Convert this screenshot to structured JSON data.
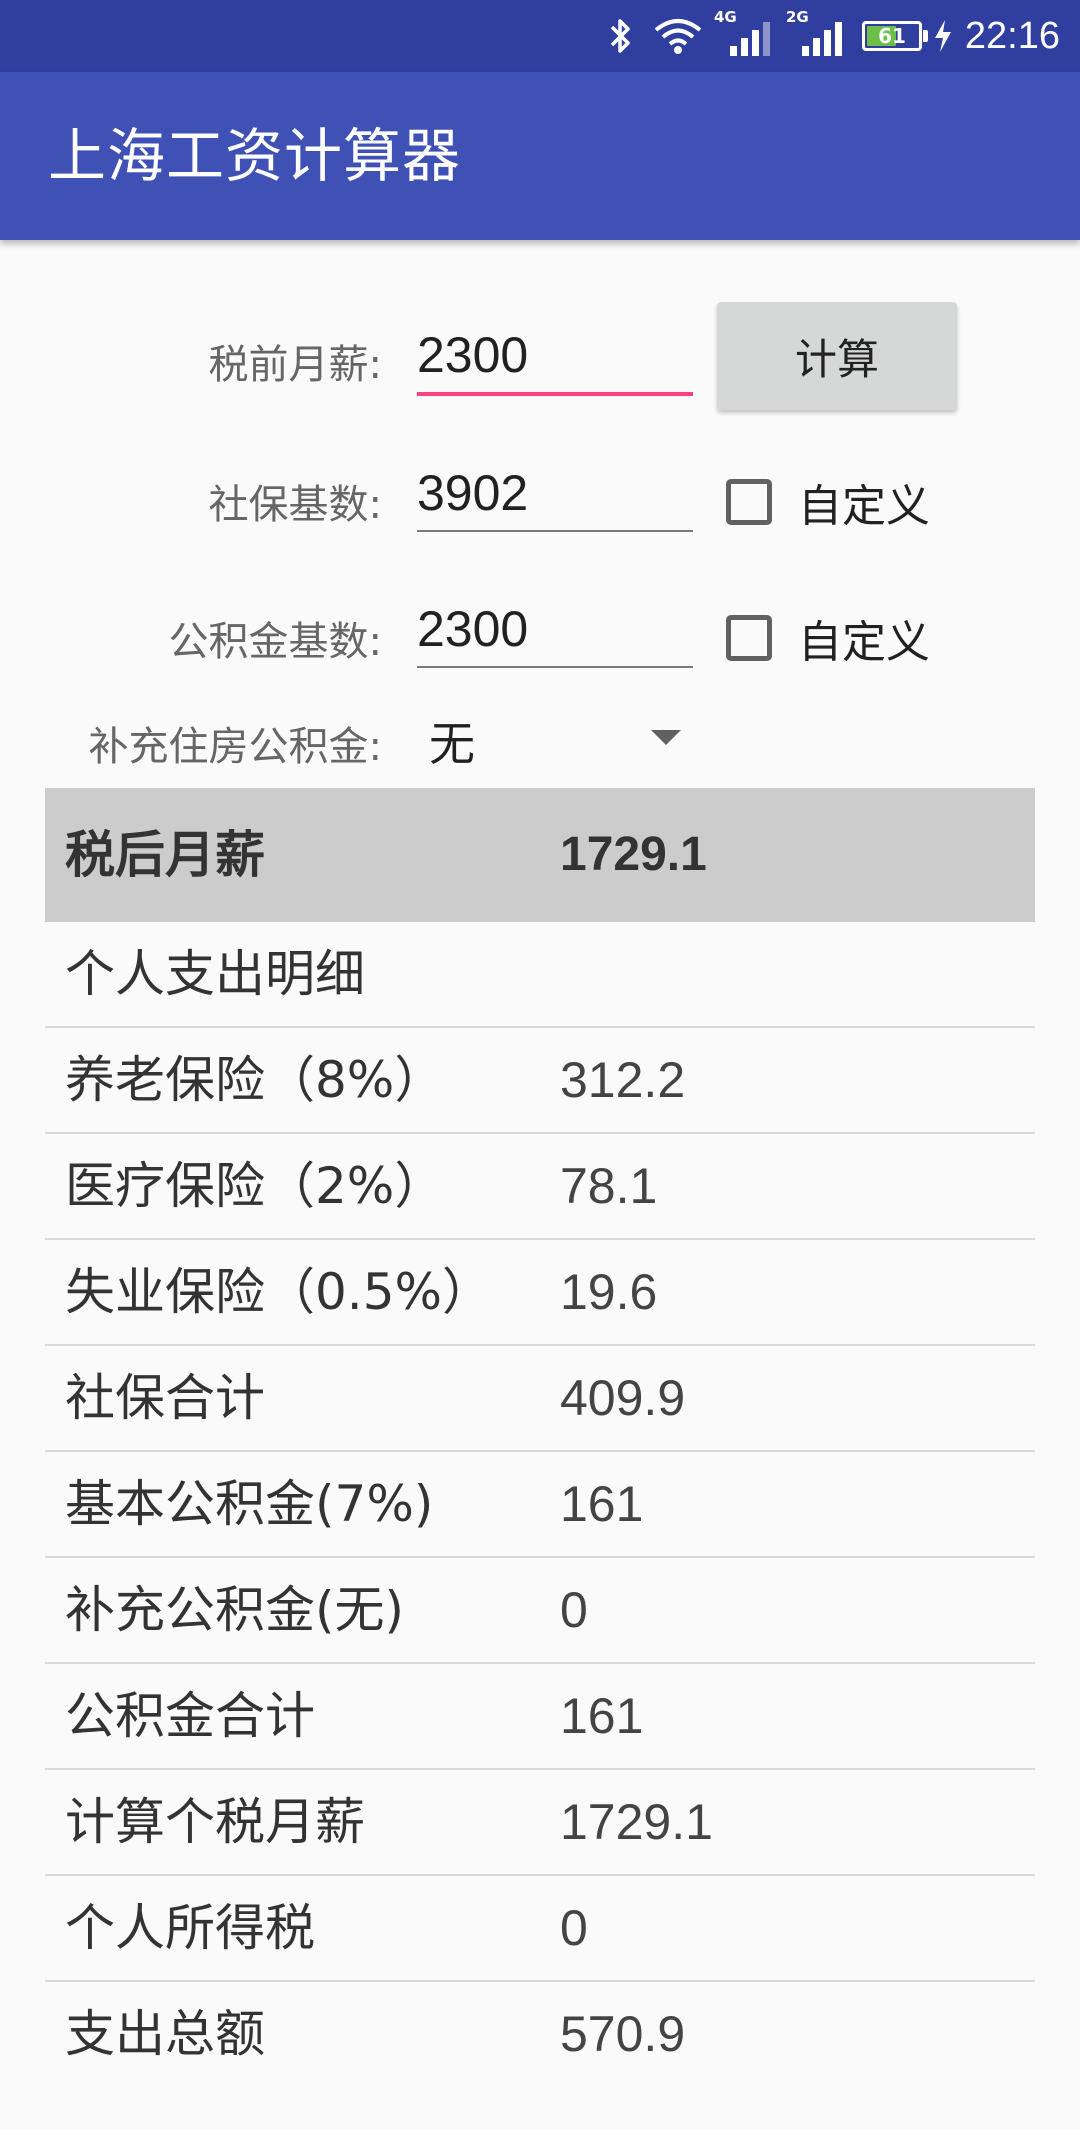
{
  "status_bar": {
    "time": "22:16",
    "network1": "4G",
    "network2": "2G",
    "battery_level": "61",
    "battery_fraction": 0.61,
    "icons": [
      "bluetooth-icon",
      "wifi-icon",
      "signal-icon",
      "signal-icon",
      "battery-icon",
      "charging-icon"
    ]
  },
  "app": {
    "title": "上海工资计算器",
    "primary_color": "#3f51b5",
    "status_color": "#303f9f",
    "accent_color": "#ff4081"
  },
  "form": {
    "salary_label": "税前月薪:",
    "salary_value": "2300",
    "calc_button": "计算",
    "social_base_label": "社保基数:",
    "social_base_value": "3902",
    "social_custom_label": "自定义",
    "social_custom_checked": false,
    "fund_base_label": "公积金基数:",
    "fund_base_value": "2300",
    "fund_custom_label": "自定义",
    "fund_custom_checked": false,
    "supplement_label": "补充住房公积金:",
    "supplement_selected": "无"
  },
  "result": {
    "net_label": "税后月薪",
    "net_value": "1729.1",
    "section_title": "个人支出明细",
    "rows": [
      {
        "label": "养老保险（8%）",
        "value": "312.2"
      },
      {
        "label": "医疗保险（2%）",
        "value": "78.1"
      },
      {
        "label": "失业保险（0.5%）",
        "value": "19.6"
      },
      {
        "label": "社保合计",
        "value": "409.9"
      },
      {
        "label": "基本公积金(7%)",
        "value": "161"
      },
      {
        "label": "补充公积金(无)",
        "value": "0"
      },
      {
        "label": "公积金合计",
        "value": "161"
      },
      {
        "label": "计算个税月薪",
        "value": "1729.1"
      },
      {
        "label": "个人所得税",
        "value": "0"
      },
      {
        "label": "支出总额",
        "value": "570.9"
      }
    ]
  }
}
